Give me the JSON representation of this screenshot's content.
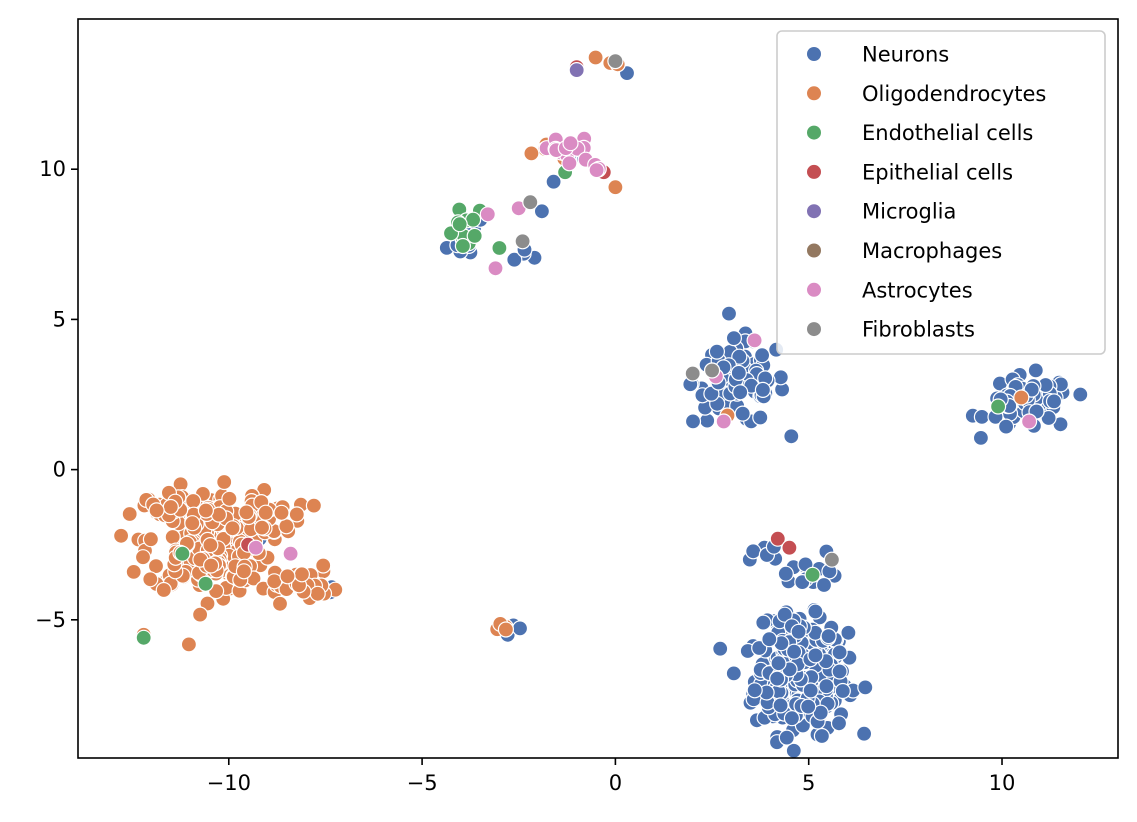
{
  "chart_data": {
    "type": "scatter",
    "title": "",
    "xlabel": "",
    "ylabel": "",
    "xlim": [
      -13.9,
      13.0
    ],
    "ylim": [
      -9.6,
      15.0
    ],
    "x_ticks": [
      -10,
      -5,
      0,
      5,
      10
    ],
    "x_tick_labels": [
      "−10",
      "−5",
      "0",
      "5",
      "10"
    ],
    "y_ticks": [
      -5,
      0,
      5,
      10
    ],
    "y_tick_labels": [
      "−5",
      "0",
      "5",
      "10"
    ],
    "grid": false,
    "legend_position": "top-right",
    "series": [
      {
        "name": "Neurons",
        "color": "#4c72b0",
        "clusters": [
          {
            "cx": 4.8,
            "cy": -7.0,
            "sx": 0.6,
            "sy": 0.9,
            "n": 260
          },
          {
            "cx": 4.7,
            "cy": -5.6,
            "sx": 0.5,
            "sy": 0.4,
            "n": 40
          },
          {
            "cx": 3.2,
            "cy": 2.9,
            "sx": 0.6,
            "sy": 0.7,
            "n": 90
          },
          {
            "cx": 10.7,
            "cy": 2.2,
            "sx": 0.55,
            "sy": 0.45,
            "n": 75
          },
          {
            "cx": 4.9,
            "cy": -3.3,
            "sx": 0.5,
            "sy": 0.3,
            "n": 16
          },
          {
            "cx": 3.9,
            "cy": -2.7,
            "sx": 0.15,
            "sy": 0.1,
            "n": 4
          },
          {
            "cx": -3.7,
            "cy": 7.6,
            "sx": 0.35,
            "sy": 0.3,
            "n": 10
          },
          {
            "cx": -2.2,
            "cy": 7.4,
            "sx": 0.25,
            "sy": 0.2,
            "n": 4
          },
          {
            "cx": -1.2,
            "cy": 10.2,
            "sx": 0.3,
            "sy": 0.3,
            "n": 6
          },
          {
            "cx": -1.9,
            "cy": 8.6,
            "sx": 0.05,
            "sy": 0.05,
            "n": 1
          },
          {
            "cx": 0.3,
            "cy": 13.2,
            "sx": 0.05,
            "sy": 0.05,
            "n": 1
          },
          {
            "cx": -2.5,
            "cy": -5.3,
            "sx": 0.2,
            "sy": 0.15,
            "n": 3
          },
          {
            "cx": -7.7,
            "cy": -4.0,
            "sx": 0.25,
            "sy": 0.15,
            "n": 5
          },
          {
            "cx": -11.1,
            "cy": -1.0,
            "sx": 0.05,
            "sy": 0.05,
            "n": 1
          },
          {
            "cx": -9.2,
            "cy": -2.3,
            "sx": 0.05,
            "sy": 0.05,
            "n": 1
          }
        ]
      },
      {
        "name": "Oligodendrocytes",
        "color": "#dd8452",
        "clusters": [
          {
            "cx": -10.6,
            "cy": -2.4,
            "sx": 0.75,
            "sy": 0.85,
            "n": 260
          },
          {
            "cx": -9.8,
            "cy": -1.5,
            "sx": 0.9,
            "sy": 0.3,
            "n": 45
          },
          {
            "cx": -8.4,
            "cy": -3.8,
            "sx": 0.6,
            "sy": 0.3,
            "n": 35
          },
          {
            "cx": -11.8,
            "cy": -1.2,
            "sx": 0.3,
            "sy": 0.2,
            "n": 8
          },
          {
            "cx": -12.2,
            "cy": -5.5,
            "sx": 0.05,
            "sy": 0.05,
            "n": 1
          },
          {
            "cx": -2.9,
            "cy": -5.2,
            "sx": 0.3,
            "sy": 0.08,
            "n": 5
          },
          {
            "cx": -1.5,
            "cy": 10.5,
            "sx": 0.3,
            "sy": 0.2,
            "n": 4
          },
          {
            "cx": 0.0,
            "cy": 9.4,
            "sx": 0.05,
            "sy": 0.05,
            "n": 1
          },
          {
            "cx": -0.2,
            "cy": 13.5,
            "sx": 0.15,
            "sy": 0.15,
            "n": 4
          },
          {
            "cx": 2.9,
            "cy": 1.8,
            "sx": 0.05,
            "sy": 0.05,
            "n": 1
          },
          {
            "cx": 10.5,
            "cy": 2.4,
            "sx": 0.05,
            "sy": 0.05,
            "n": 1
          }
        ]
      },
      {
        "name": "Endothelial cells",
        "color": "#55a868",
        "clusters": [
          {
            "cx": -3.8,
            "cy": 7.8,
            "sx": 0.35,
            "sy": 0.45,
            "n": 14
          },
          {
            "cx": -1.3,
            "cy": 9.9,
            "sx": 0.05,
            "sy": 0.05,
            "n": 1
          },
          {
            "cx": 5.1,
            "cy": -3.5,
            "sx": 0.05,
            "sy": 0.05,
            "n": 1
          },
          {
            "cx": 9.9,
            "cy": 2.1,
            "sx": 0.05,
            "sy": 0.05,
            "n": 1
          },
          {
            "cx": -11.2,
            "cy": -2.8,
            "sx": 0.05,
            "sy": 0.05,
            "n": 1
          },
          {
            "cx": -10.6,
            "cy": -3.8,
            "sx": 0.05,
            "sy": 0.05,
            "n": 1
          },
          {
            "cx": -12.2,
            "cy": -5.6,
            "sx": 0.05,
            "sy": 0.05,
            "n": 1
          }
        ]
      },
      {
        "name": "Epithelial cells",
        "color": "#c44e52",
        "clusters": [
          {
            "cx": -1.0,
            "cy": 13.4,
            "sx": 0.05,
            "sy": 0.05,
            "n": 1
          },
          {
            "cx": -0.3,
            "cy": 9.9,
            "sx": 0.05,
            "sy": 0.05,
            "n": 1
          },
          {
            "cx": 4.2,
            "cy": -2.3,
            "sx": 0.05,
            "sy": 0.05,
            "n": 1
          },
          {
            "cx": 4.5,
            "cy": -2.6,
            "sx": 0.05,
            "sy": 0.05,
            "n": 1
          },
          {
            "cx": -9.5,
            "cy": -2.5,
            "sx": 0.05,
            "sy": 0.05,
            "n": 1
          }
        ]
      },
      {
        "name": "Microglia",
        "color": "#8172b3",
        "clusters": [
          {
            "cx": -1.0,
            "cy": 13.3,
            "sx": 0.05,
            "sy": 0.05,
            "n": 1
          }
        ]
      },
      {
        "name": "Macrophages",
        "color": "#937860",
        "clusters": [
          {
            "cx": 2.5,
            "cy": 3.3,
            "sx": 0.05,
            "sy": 0.05,
            "n": 1
          }
        ]
      },
      {
        "name": "Astrocytes",
        "color": "#da8bc3",
        "clusters": [
          {
            "cx": -1.2,
            "cy": 10.6,
            "sx": 0.4,
            "sy": 0.25,
            "n": 14
          },
          {
            "cx": -0.4,
            "cy": 10.0,
            "sx": 0.2,
            "sy": 0.2,
            "n": 4
          },
          {
            "cx": -3.3,
            "cy": 8.5,
            "sx": 0.05,
            "sy": 0.05,
            "n": 1
          },
          {
            "cx": -3.1,
            "cy": 6.7,
            "sx": 0.05,
            "sy": 0.05,
            "n": 1
          },
          {
            "cx": -2.5,
            "cy": 8.7,
            "sx": 0.05,
            "sy": 0.05,
            "n": 1
          },
          {
            "cx": 3.6,
            "cy": 4.3,
            "sx": 0.05,
            "sy": 0.05,
            "n": 1
          },
          {
            "cx": 2.8,
            "cy": 1.6,
            "sx": 0.05,
            "sy": 0.05,
            "n": 1
          },
          {
            "cx": 2.6,
            "cy": 3.1,
            "sx": 0.05,
            "sy": 0.05,
            "n": 1
          },
          {
            "cx": 10.7,
            "cy": 1.6,
            "sx": 0.05,
            "sy": 0.05,
            "n": 1
          },
          {
            "cx": -8.4,
            "cy": -2.8,
            "sx": 0.05,
            "sy": 0.05,
            "n": 1
          },
          {
            "cx": -9.3,
            "cy": -2.6,
            "sx": 0.05,
            "sy": 0.05,
            "n": 1
          }
        ]
      },
      {
        "name": "Fibroblasts",
        "color": "#8c8c8c",
        "clusters": [
          {
            "cx": 0.0,
            "cy": 13.6,
            "sx": 0.05,
            "sy": 0.05,
            "n": 1
          },
          {
            "cx": -2.2,
            "cy": 8.9,
            "sx": 0.05,
            "sy": 0.05,
            "n": 1
          },
          {
            "cx": -2.4,
            "cy": 7.6,
            "sx": 0.05,
            "sy": 0.05,
            "n": 1
          },
          {
            "cx": 2.0,
            "cy": 3.2,
            "sx": 0.05,
            "sy": 0.05,
            "n": 1
          },
          {
            "cx": 2.5,
            "cy": 3.3,
            "sx": 0.05,
            "sy": 0.05,
            "n": 1
          },
          {
            "cx": 5.6,
            "cy": -3.0,
            "sx": 0.05,
            "sy": 0.05,
            "n": 1
          }
        ]
      }
    ]
  }
}
